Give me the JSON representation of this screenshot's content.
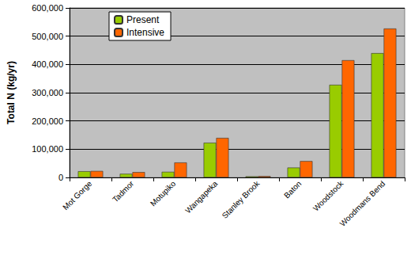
{
  "chart_data": {
    "type": "bar",
    "ylabel": "Total N (kg/yr)",
    "categories": [
      "Mot Gorge",
      "Tadmor",
      "Motupiko",
      "Wangapeka",
      "Stanley Brook",
      "Baton",
      "Woodstock",
      "Woodmans Bend"
    ],
    "series": [
      {
        "name": "Present",
        "color": "#99cc00",
        "values": [
          22000,
          13000,
          20000,
          123000,
          4000,
          35000,
          328000,
          440000
        ]
      },
      {
        "name": "Intensive",
        "color": "#ff6600",
        "values": [
          23000,
          19000,
          53000,
          140000,
          5000,
          58000,
          415000,
          527000
        ]
      }
    ],
    "ylim": [
      0,
      600000
    ],
    "yticks": [
      0,
      {
        "value": 100000,
        "label": "100,000"
      },
      {
        "value": 200000,
        "label": "200,000"
      },
      {
        "value": 300000,
        "label": "300,000"
      },
      {
        "value": 400000,
        "label": "400,000"
      },
      {
        "value": 500000,
        "label": "500,000"
      },
      {
        "value": 600000,
        "label": "600,000"
      }
    ],
    "grid": true,
    "legend": "upper left"
  }
}
